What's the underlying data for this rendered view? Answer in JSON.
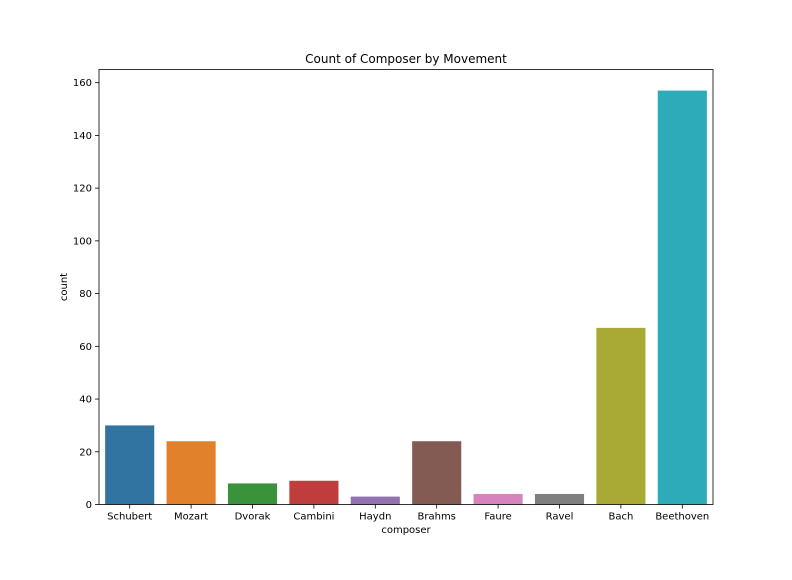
{
  "chart_data": {
    "type": "bar",
    "title": "Count of Composer by Movement",
    "xlabel": "composer",
    "ylabel": "count",
    "categories": [
      "Schubert",
      "Mozart",
      "Dvorak",
      "Cambini",
      "Haydn",
      "Brahms",
      "Faure",
      "Ravel",
      "Bach",
      "Beethoven"
    ],
    "values": [
      30,
      24,
      8,
      9,
      3,
      24,
      4,
      4,
      67,
      157
    ],
    "colors": [
      "#3274a1",
      "#e1812c",
      "#3a923a",
      "#c03d3e",
      "#9372b2",
      "#845b53",
      "#d684bd",
      "#7f7f7f",
      "#a9aa35",
      "#2eabb8"
    ],
    "ylim": [
      0,
      165
    ],
    "yticks": [
      0,
      20,
      40,
      60,
      80,
      100,
      120,
      140,
      160
    ],
    "grid": false,
    "legend": "none"
  }
}
